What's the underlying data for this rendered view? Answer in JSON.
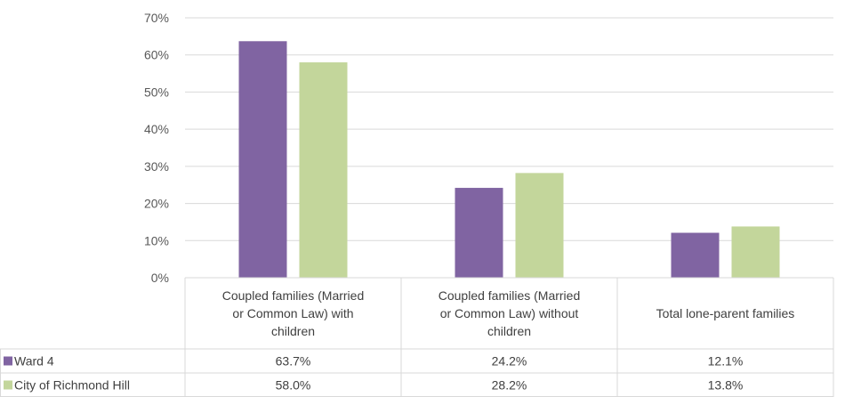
{
  "chart_data": {
    "type": "bar",
    "categories": [
      [
        "Coupled families (Married",
        "or Common Law) with",
        "children"
      ],
      [
        "Coupled families (Married",
        "or Common Law) without",
        "children"
      ],
      [
        "Total lone-parent families"
      ]
    ],
    "series": [
      {
        "name": "Ward 4",
        "values": [
          63.7,
          24.2,
          12.1
        ],
        "labels": [
          "63.7%",
          "24.2%",
          "12.1%"
        ],
        "color": "#8064A2"
      },
      {
        "name": "City of Richmond Hill",
        "values": [
          58.0,
          28.2,
          13.8
        ],
        "labels": [
          "58.0%",
          "28.2%",
          "13.8%"
        ],
        "color": "#C3D69B"
      }
    ],
    "ylim": [
      0,
      70
    ],
    "yticks": [
      0,
      10,
      20,
      30,
      40,
      50,
      60,
      70
    ],
    "ytick_labels": [
      "0%",
      "10%",
      "20%",
      "30%",
      "40%",
      "50%",
      "60%",
      "70%"
    ],
    "grid": true,
    "data_table": true,
    "title": "",
    "xlabel": "",
    "ylabel": ""
  }
}
